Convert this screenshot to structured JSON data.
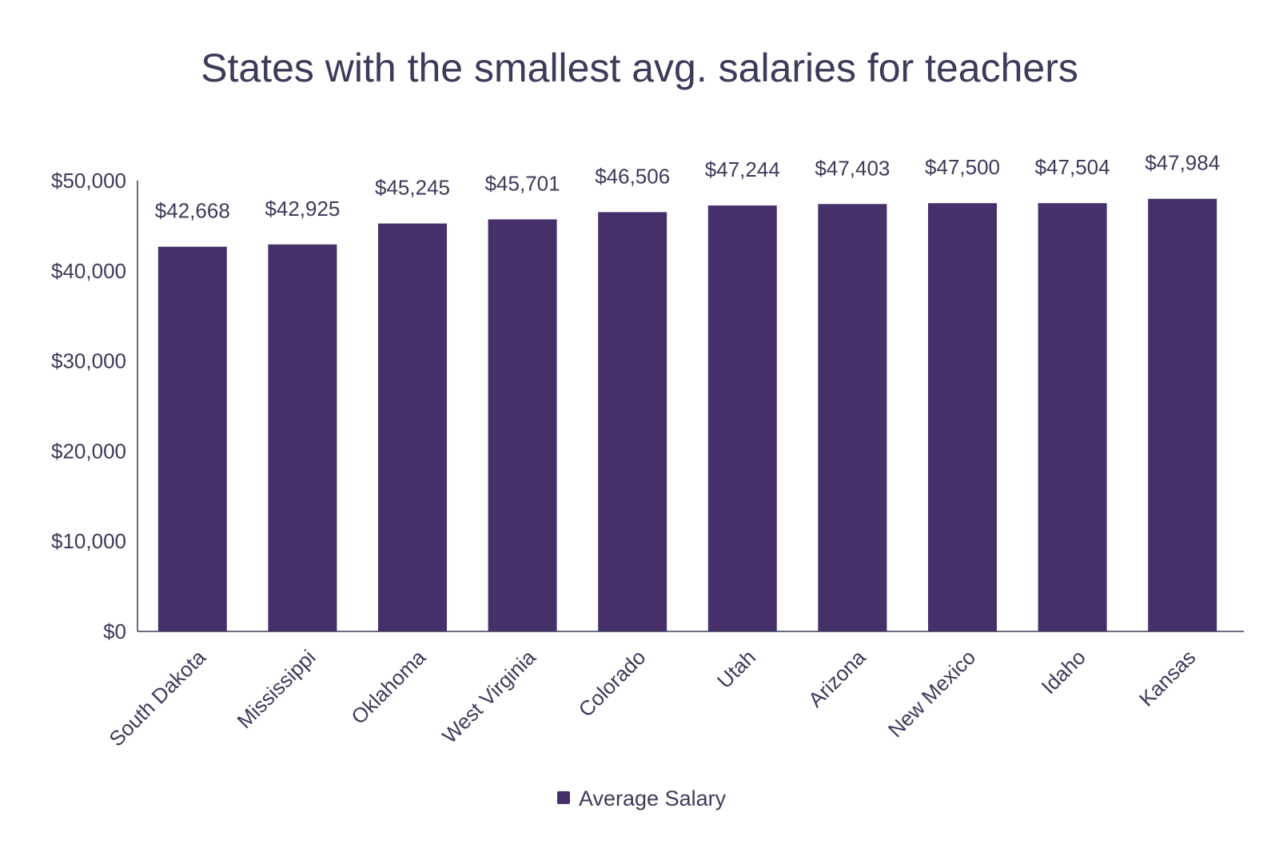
{
  "chart_data": {
    "type": "bar",
    "title": "States with the smallest avg. salaries for teachers",
    "xlabel": "",
    "ylabel": "",
    "categories": [
      "South Dakota",
      "Mississippi",
      "Oklahoma",
      "West Virginia",
      "Colorado",
      "Utah",
      "Arizona",
      "New Mexico",
      "Idaho",
      "Kansas"
    ],
    "series": [
      {
        "name": "Average Salary",
        "values": [
          42668,
          42925,
          45245,
          45701,
          46506,
          47244,
          47403,
          47500,
          47504,
          47984
        ],
        "labels": [
          "$42,668",
          "$42,925",
          "$45,245",
          "$45,701",
          "$46,506",
          "$47,244",
          "$47,403",
          "$47,500",
          "$47,504",
          "$47,984"
        ],
        "color": "#45306a"
      }
    ],
    "ylim": [
      0,
      50000
    ],
    "yticks": [
      0,
      10000,
      20000,
      30000,
      40000,
      50000
    ],
    "ytick_labels": [
      "$0",
      "$10,000",
      "$20,000",
      "$30,000",
      "$40,000",
      "$50,000"
    ],
    "grid": false,
    "legend": {
      "placement": "bottom-center",
      "entries": [
        "Average Salary"
      ]
    }
  },
  "colors": {
    "bar": "#45306a",
    "text": "#3b3b5a",
    "axis": "#3b3b5a"
  }
}
